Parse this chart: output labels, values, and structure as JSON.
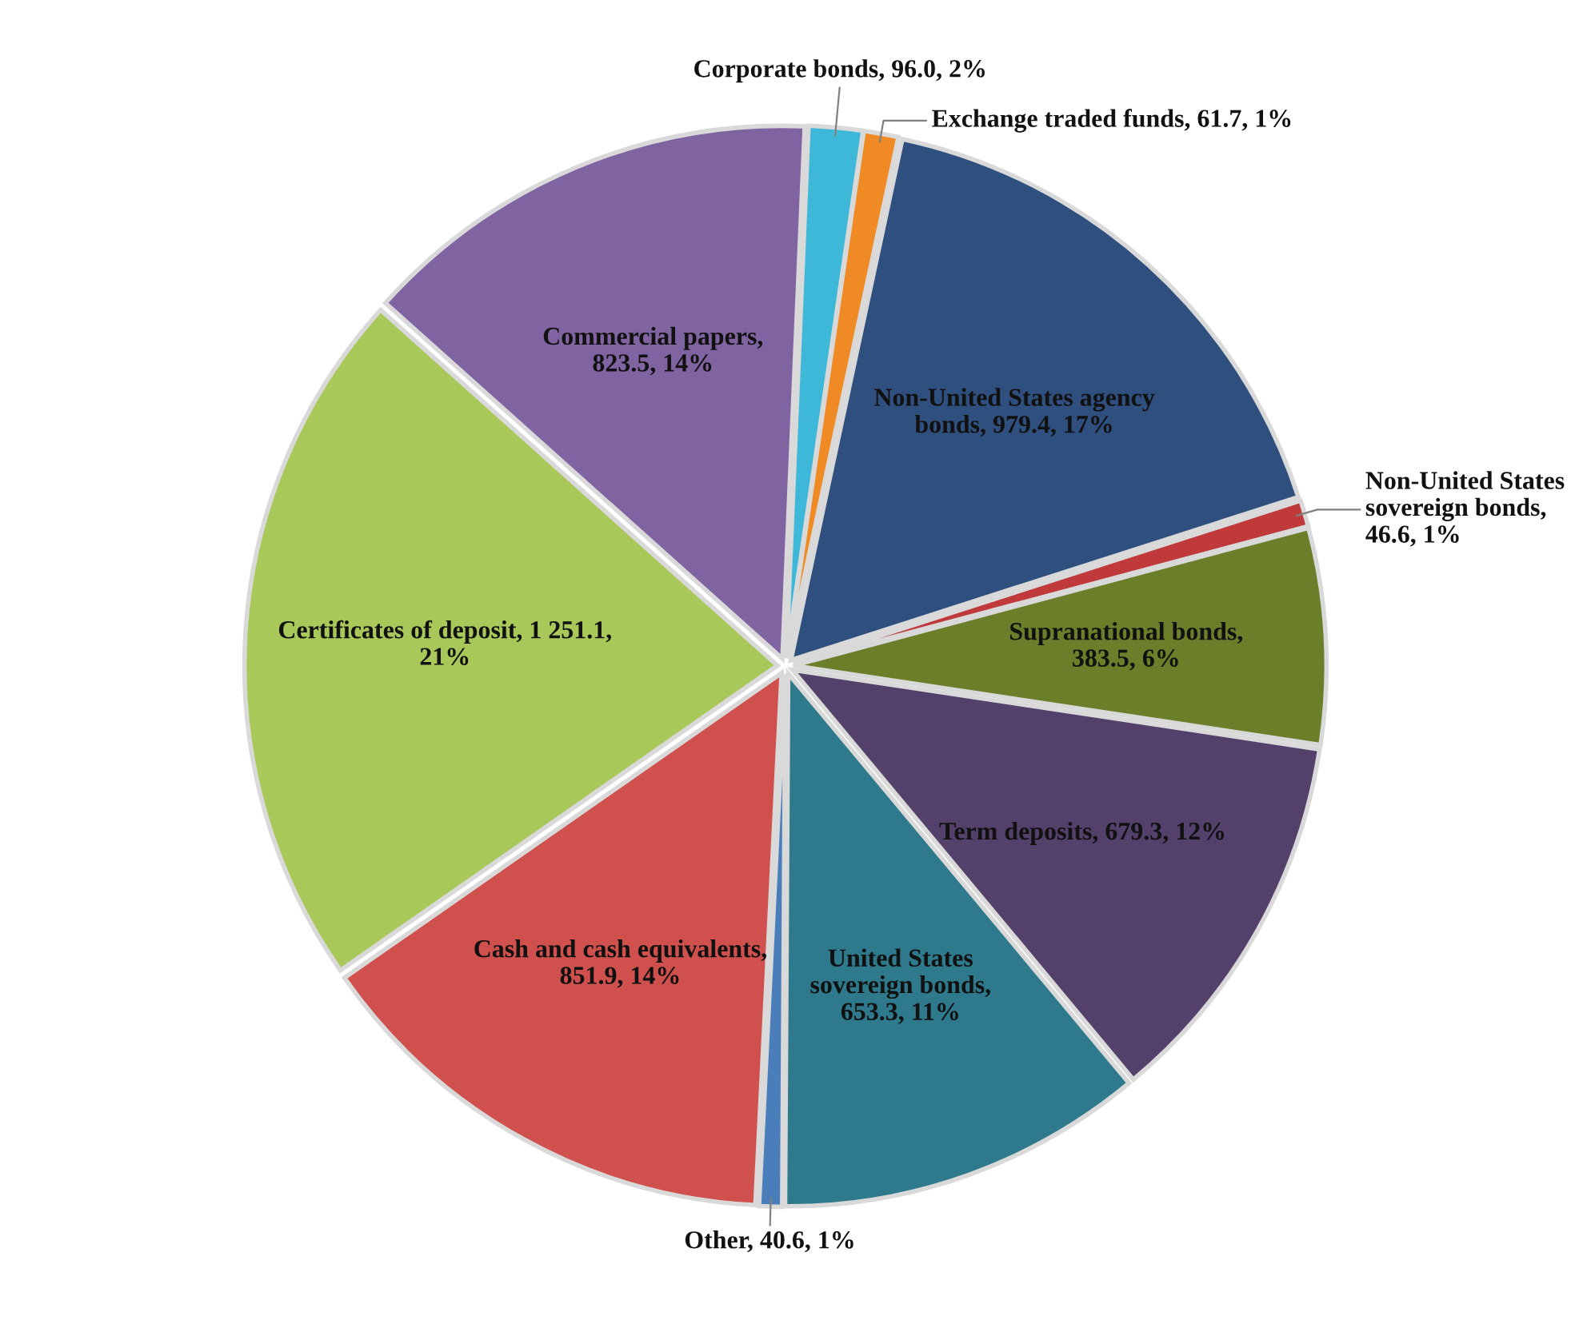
{
  "chart_data": {
    "type": "pie",
    "categories": [
      "Corporate bonds, 96.0, 2%",
      "Exchange traded funds, 61.7, 1%",
      "Non-United States agency\nbonds, 979.4, 17%",
      "Non-United States\nsovereign bonds, 46.6, 1%",
      "Supranational bonds,\n383.5, 6%",
      "Term deposits, 679.3, 12%",
      "United States\nsovereign bonds,\n653.3, 11%",
      "Other, 40.6, 1%",
      "Cash and cash equivalents,\n851.9, 14%",
      "Certificates of deposit, 1 251.1,\n21%",
      "Commercial papers,\n823.5, 14%"
    ],
    "values": [
      96.0,
      61.7,
      979.4,
      46.6,
      383.5,
      679.3,
      653.3,
      40.6,
      851.9,
      1251.1,
      823.5
    ],
    "colors": [
      "#3db8d8",
      "#f08a24",
      "#2f4f7f",
      "#c0393b",
      "#6b7f2a",
      "#53406b",
      "#2e7a8c",
      "#4a7ebb",
      "#d0504d",
      "#a9c85a",
      "#8064a2"
    ]
  }
}
